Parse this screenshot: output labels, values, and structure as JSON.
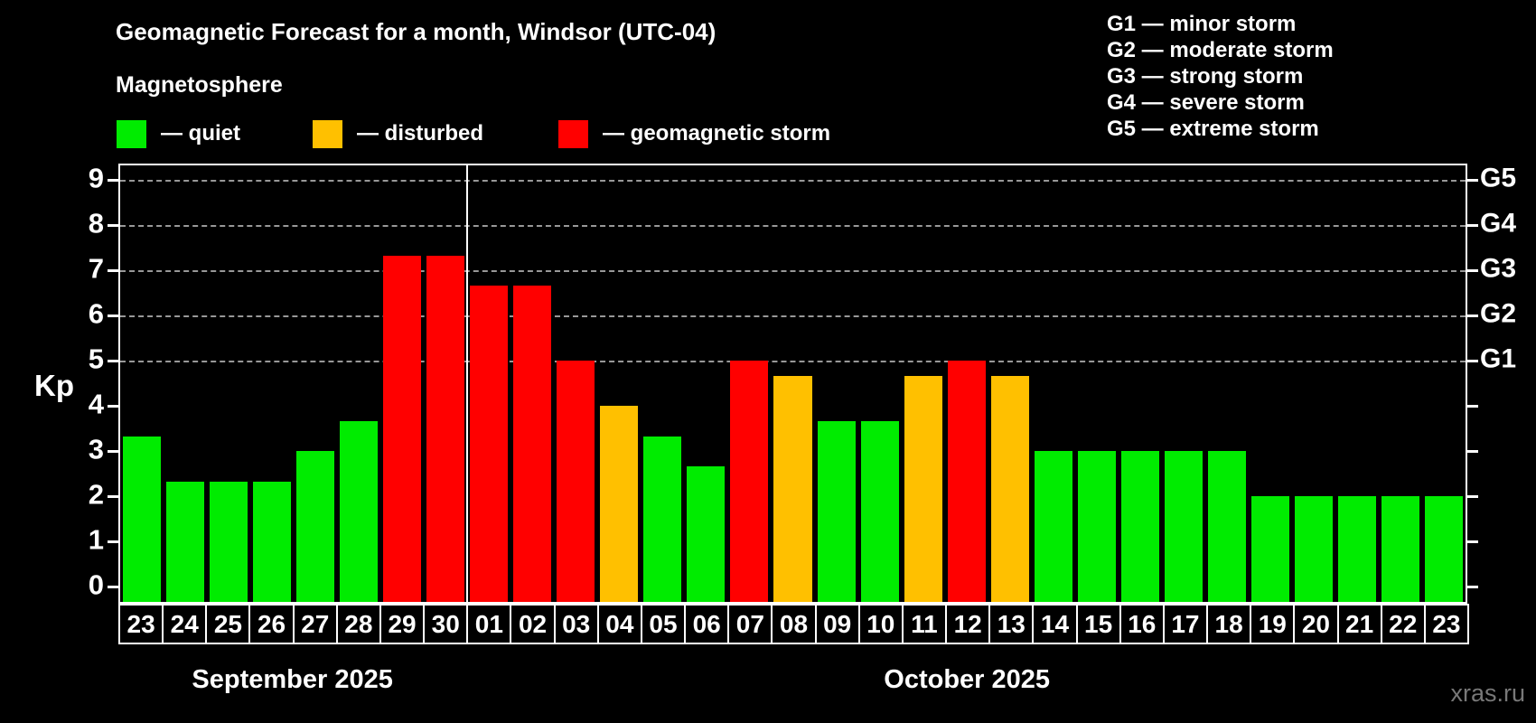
{
  "title": "Geomagnetic Forecast for a month, Windsor (UTC-04)",
  "subtitle": "Magnetosphere",
  "legend": [
    {
      "key": "quiet",
      "label": "— quiet",
      "color": "#00ec00"
    },
    {
      "key": "disturbed",
      "label": "— disturbed",
      "color": "#ffc000"
    },
    {
      "key": "storm",
      "label": "— geomagnetic storm",
      "color": "#ff0000"
    }
  ],
  "g_legend": [
    "G1 — minor storm",
    "G2 — moderate storm",
    "G3 — strong storm",
    "G4 — severe storm",
    "G5 — extreme storm"
  ],
  "axis": {
    "kp_label": "Kp",
    "left_ticks": [
      0,
      1,
      2,
      3,
      4,
      5,
      6,
      7,
      8,
      9
    ],
    "right_labels": {
      "5": "G1",
      "6": "G2",
      "7": "G3",
      "8": "G4",
      "9": "G5"
    }
  },
  "watermark": "xras.ru",
  "colors": {
    "background": "#000000",
    "frame": "#ffffff",
    "gridline": "#b3b3b3",
    "quiet": "#00ec00",
    "disturbed": "#ffc000",
    "storm": "#ff0000",
    "watermark": "#787878"
  },
  "chart_data": {
    "type": "bar",
    "title": "Geomagnetic Forecast for a month, Windsor (UTC-04)",
    "xlabel": "",
    "ylabel": "Kp",
    "ylim": [
      0,
      9
    ],
    "grid": "dashed horizontal at Kp 5-9 (G1-G5)",
    "gridlines_at": [
      5,
      6,
      7,
      8,
      9
    ],
    "right_axis_labels": {
      "5": "G1",
      "6": "G2",
      "7": "G3",
      "8": "G4",
      "9": "G5"
    },
    "legend_position": "top-left",
    "months": [
      {
        "label": "September 2025",
        "start_index": 0,
        "days": 8
      },
      {
        "label": "October 2025",
        "start_index": 8,
        "days": 23
      }
    ],
    "categories": [
      "23",
      "24",
      "25",
      "26",
      "27",
      "28",
      "29",
      "30",
      "01",
      "02",
      "03",
      "04",
      "05",
      "06",
      "07",
      "08",
      "09",
      "10",
      "11",
      "12",
      "13",
      "14",
      "15",
      "16",
      "17",
      "18",
      "19",
      "20",
      "21",
      "22",
      "23"
    ],
    "bars": [
      {
        "day": "23",
        "month": "September 2025",
        "value": 3.33,
        "level": "quiet"
      },
      {
        "day": "24",
        "month": "September 2025",
        "value": 2.33,
        "level": "quiet"
      },
      {
        "day": "25",
        "month": "September 2025",
        "value": 2.33,
        "level": "quiet"
      },
      {
        "day": "26",
        "month": "September 2025",
        "value": 2.33,
        "level": "quiet"
      },
      {
        "day": "27",
        "month": "September 2025",
        "value": 3.0,
        "level": "quiet"
      },
      {
        "day": "28",
        "month": "September 2025",
        "value": 3.67,
        "level": "quiet"
      },
      {
        "day": "29",
        "month": "September 2025",
        "value": 7.33,
        "level": "storm"
      },
      {
        "day": "30",
        "month": "September 2025",
        "value": 7.33,
        "level": "storm"
      },
      {
        "day": "01",
        "month": "October 2025",
        "value": 6.67,
        "level": "storm"
      },
      {
        "day": "02",
        "month": "October 2025",
        "value": 6.67,
        "level": "storm"
      },
      {
        "day": "03",
        "month": "October 2025",
        "value": 5.0,
        "level": "storm"
      },
      {
        "day": "04",
        "month": "October 2025",
        "value": 4.0,
        "level": "disturbed"
      },
      {
        "day": "05",
        "month": "October 2025",
        "value": 3.33,
        "level": "quiet"
      },
      {
        "day": "06",
        "month": "October 2025",
        "value": 2.67,
        "level": "quiet"
      },
      {
        "day": "07",
        "month": "October 2025",
        "value": 5.0,
        "level": "storm"
      },
      {
        "day": "08",
        "month": "October 2025",
        "value": 4.67,
        "level": "disturbed"
      },
      {
        "day": "09",
        "month": "October 2025",
        "value": 3.67,
        "level": "quiet"
      },
      {
        "day": "10",
        "month": "October 2025",
        "value": 3.67,
        "level": "quiet"
      },
      {
        "day": "11",
        "month": "October 2025",
        "value": 4.67,
        "level": "disturbed"
      },
      {
        "day": "12",
        "month": "October 2025",
        "value": 5.0,
        "level": "storm"
      },
      {
        "day": "13",
        "month": "October 2025",
        "value": 4.67,
        "level": "disturbed"
      },
      {
        "day": "14",
        "month": "October 2025",
        "value": 3.0,
        "level": "quiet"
      },
      {
        "day": "15",
        "month": "October 2025",
        "value": 3.0,
        "level": "quiet"
      },
      {
        "day": "16",
        "month": "October 2025",
        "value": 3.0,
        "level": "quiet"
      },
      {
        "day": "17",
        "month": "October 2025",
        "value": 3.0,
        "level": "quiet"
      },
      {
        "day": "18",
        "month": "October 2025",
        "value": 3.0,
        "level": "quiet"
      },
      {
        "day": "19",
        "month": "October 2025",
        "value": 2.0,
        "level": "quiet"
      },
      {
        "day": "20",
        "month": "October 2025",
        "value": 2.0,
        "level": "quiet"
      },
      {
        "day": "21",
        "month": "October 2025",
        "value": 2.0,
        "level": "quiet"
      },
      {
        "day": "22",
        "month": "October 2025",
        "value": 2.0,
        "level": "quiet"
      },
      {
        "day": "23",
        "month": "October 2025",
        "value": 2.0,
        "level": "quiet"
      }
    ]
  }
}
